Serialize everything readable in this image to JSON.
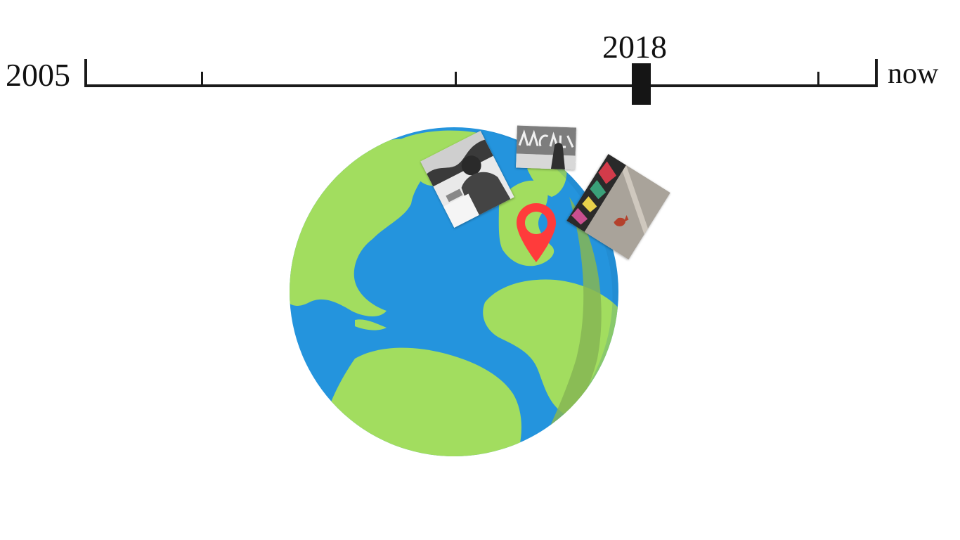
{
  "timeline": {
    "start_label": "2005",
    "end_label": "now",
    "current_label": "2018",
    "current_position_fraction": 0.7
  },
  "globe": {
    "ocean_color": "#2494dd",
    "land_color": "#a2dd5f",
    "shadow_land_color": "#86b654",
    "icon": "earth-globe-icon"
  },
  "pin": {
    "color": "#ff3b3b",
    "icon": "map-pin-icon"
  },
  "photos": [
    {
      "icon": "photo-thumbnail-bw-person"
    },
    {
      "icon": "photo-thumbnail-bw-graffiti-wall"
    },
    {
      "icon": "photo-thumbnail-color-street"
    }
  ]
}
